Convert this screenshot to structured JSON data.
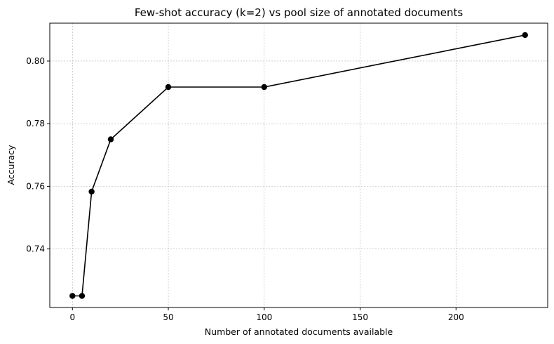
{
  "chart_data": {
    "type": "line",
    "title": "Few-shot accuracy (k=2) vs pool size of annotated documents",
    "xlabel": "Number of annotated documents available",
    "ylabel": "Accuracy",
    "x": [
      0,
      5,
      10,
      20,
      50,
      100,
      236
    ],
    "series": [
      {
        "values": [
          0.725,
          0.725,
          0.7583,
          0.775,
          0.7917,
          0.7917,
          0.8083
        ]
      }
    ],
    "xlim": [
      -11.8,
      247.8
    ],
    "ylim": [
      0.7213,
      0.8121
    ],
    "xticks": [
      0,
      50,
      100,
      150,
      200
    ],
    "yticks": [
      0.74,
      0.76,
      0.78,
      0.8
    ],
    "xtick_labels": [
      "0",
      "50",
      "100",
      "150",
      "200"
    ],
    "ytick_labels": [
      "0.74",
      "0.76",
      "0.78",
      "0.80"
    ],
    "grid": true,
    "line_color": "#000000",
    "marker": "circle",
    "grid_color": "#b0b0b0"
  }
}
